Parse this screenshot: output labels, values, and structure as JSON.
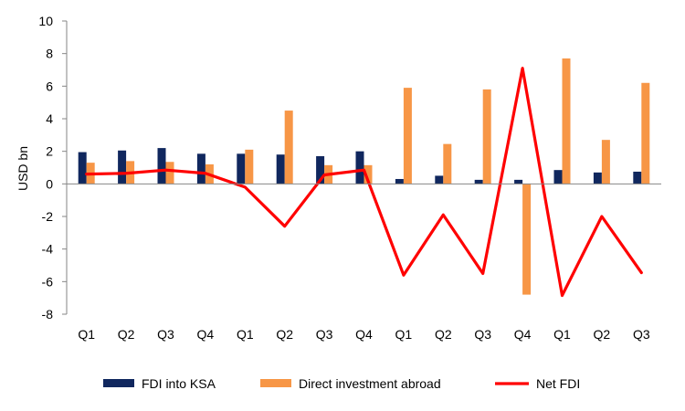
{
  "chart_data": {
    "type": "bar",
    "ylabel": "USD bn",
    "ylim": [
      -8,
      10
    ],
    "yticks": [
      -8,
      -6,
      -4,
      -2,
      0,
      2,
      4,
      6,
      8,
      10
    ],
    "grid": false,
    "legend_position": "bottom",
    "categories": [
      "Q1",
      "Q2",
      "Q3",
      "Q4",
      "Q1",
      "Q2",
      "Q3",
      "Q4",
      "Q1",
      "Q2",
      "Q3",
      "Q4",
      "Q1",
      "Q2",
      "Q3"
    ],
    "series": [
      {
        "name": "FDI into KSA",
        "type": "bar",
        "color": "#10275e",
        "values": [
          1.95,
          2.05,
          2.2,
          1.85,
          1.85,
          1.8,
          1.7,
          2.0,
          0.3,
          0.5,
          0.25,
          0.25,
          0.85,
          0.7,
          0.75
        ]
      },
      {
        "name": "Direct investment abroad",
        "type": "bar",
        "color": "#f79646",
        "values": [
          1.3,
          1.4,
          1.35,
          1.2,
          2.1,
          4.5,
          1.15,
          1.15,
          5.9,
          2.45,
          5.8,
          -6.8,
          7.7,
          2.7,
          6.2
        ]
      },
      {
        "name": "Net FDI",
        "type": "line",
        "color": "#ff0000",
        "values": [
          0.6,
          0.65,
          0.85,
          0.65,
          -0.2,
          -2.6,
          0.55,
          0.85,
          -5.6,
          -1.9,
          -5.5,
          7.1,
          -6.85,
          -2.0,
          -5.45
        ]
      }
    ]
  }
}
